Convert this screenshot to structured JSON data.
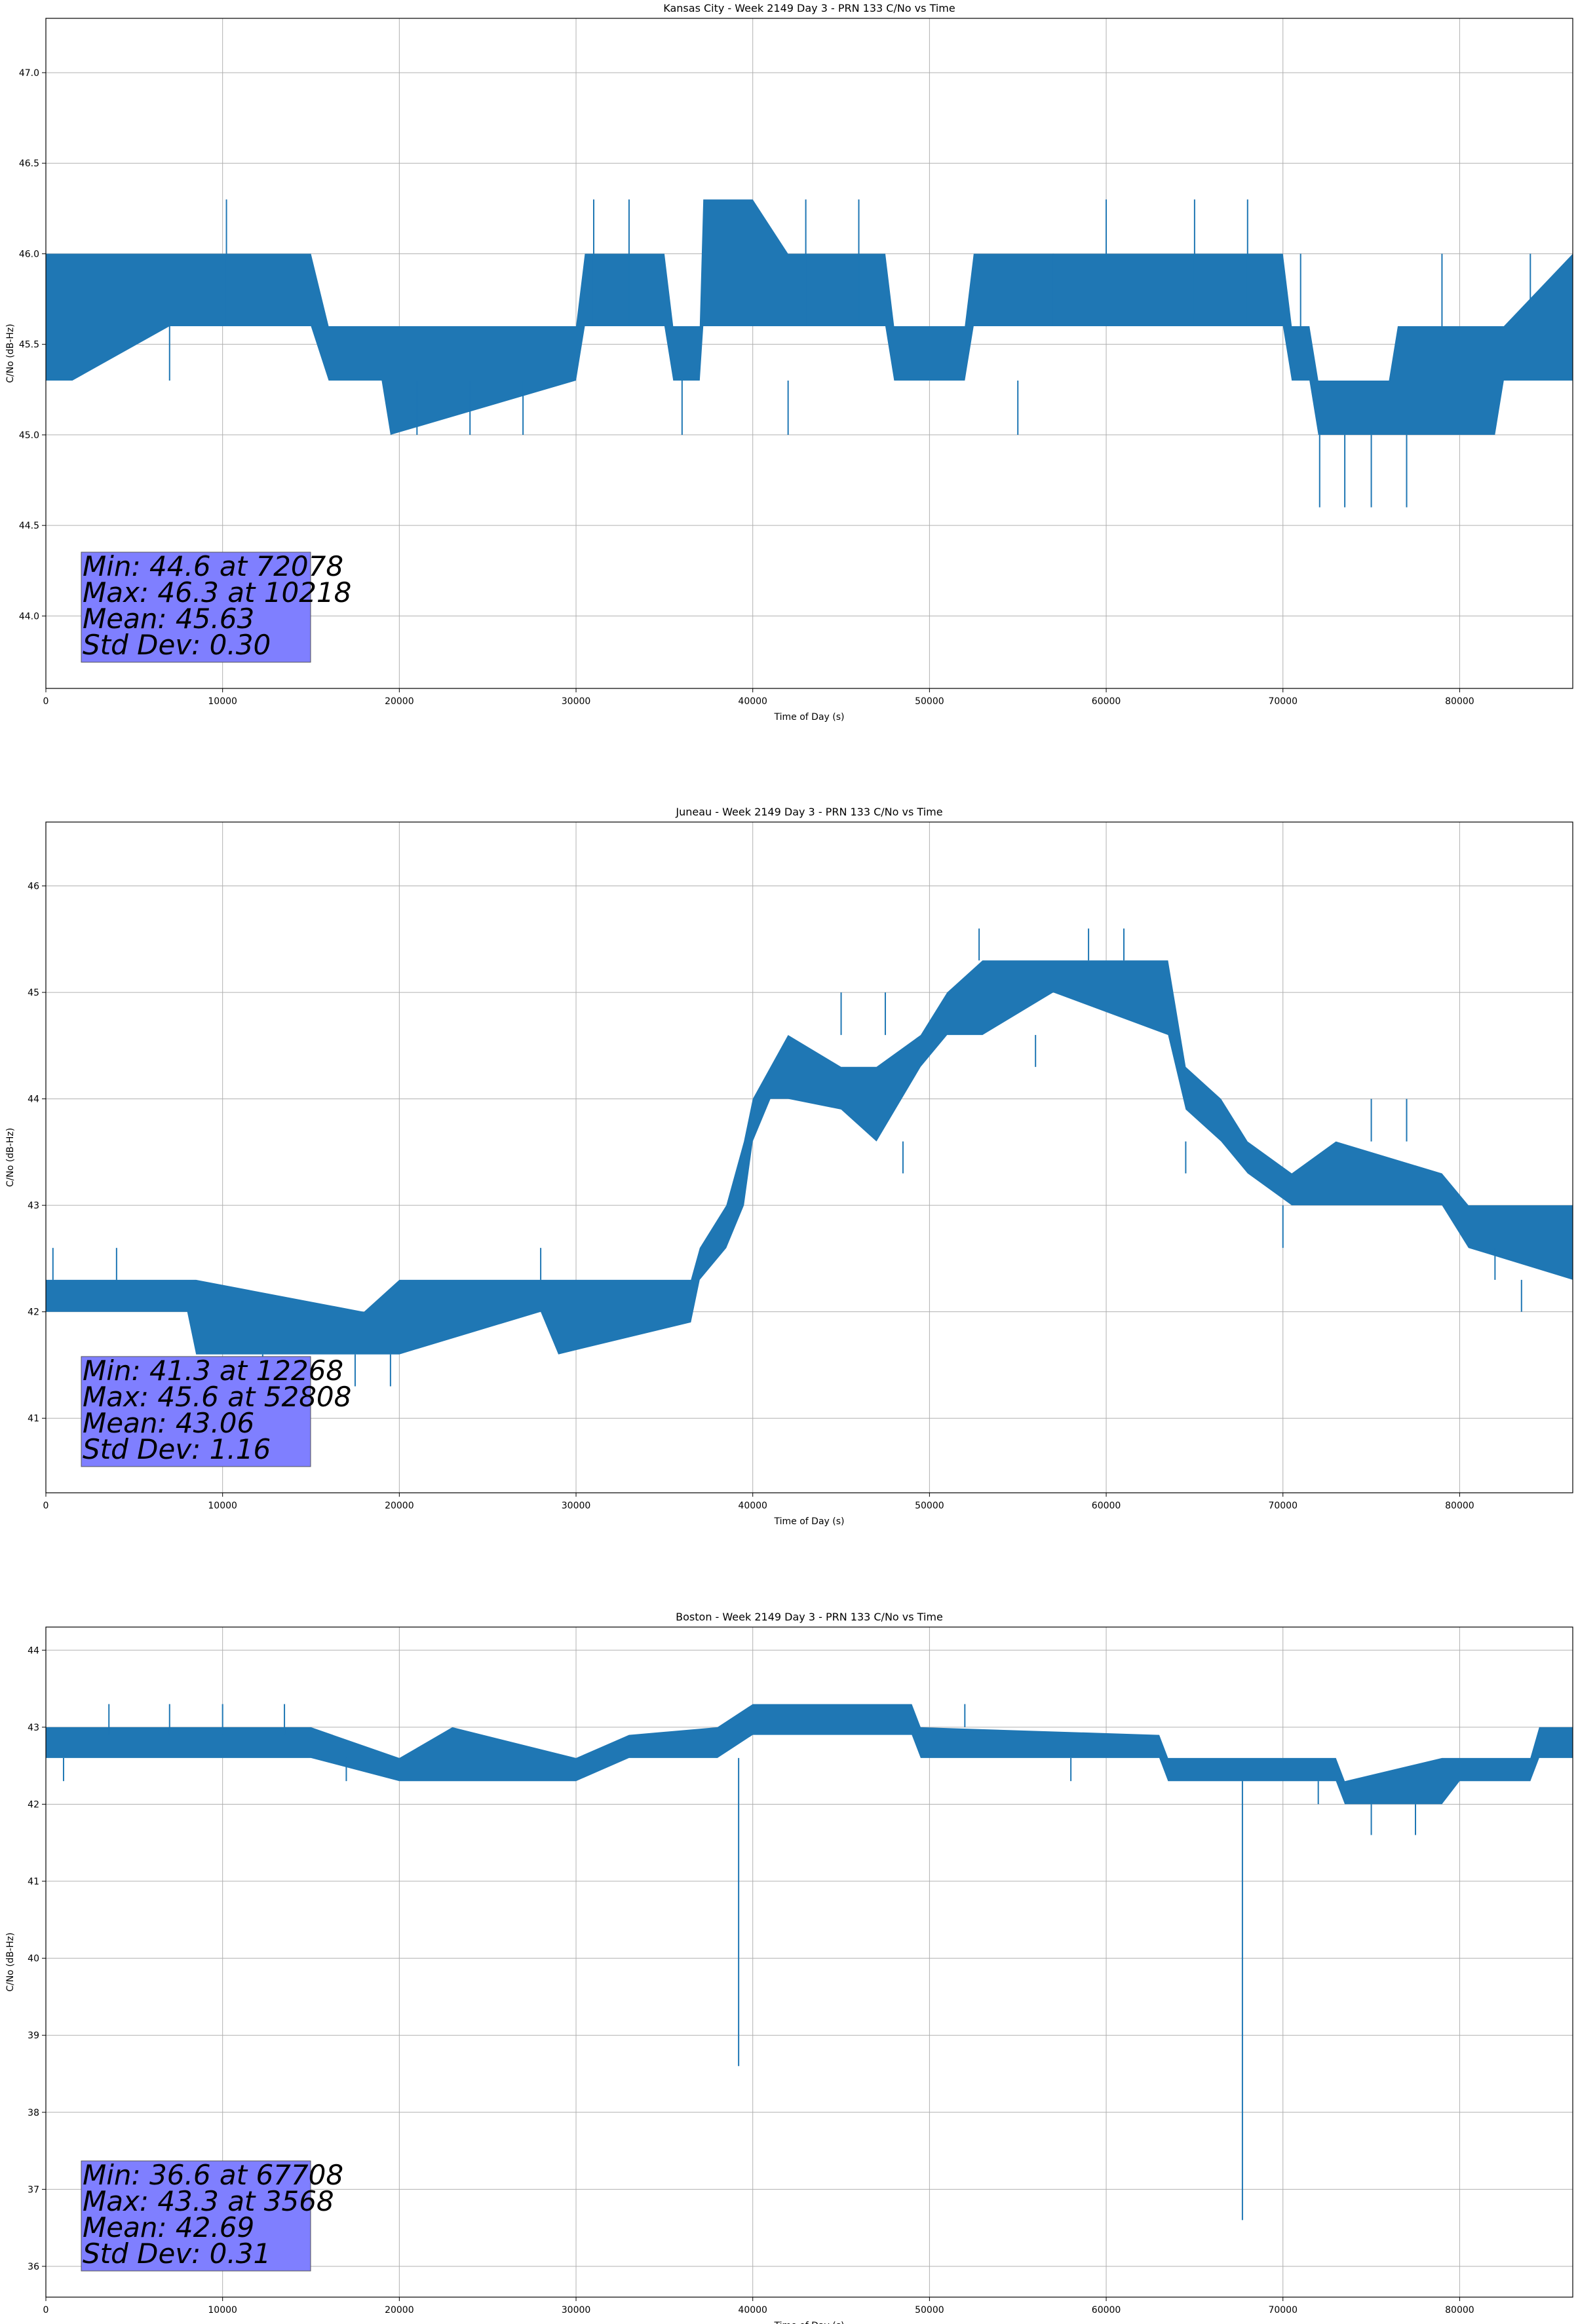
{
  "colors": {
    "series": "#1f77b4",
    "stat_box": "#7f7fff",
    "grid": "#b0b0b0"
  },
  "chart_data": [
    {
      "type": "line",
      "title": "Kansas City - Week 2149 Day 3 - PRN 133 C/No vs Time",
      "xlabel": "Time of Day (s)",
      "ylabel": "C/No (dB-Hz)",
      "xlim": [
        0,
        86400
      ],
      "ylim": [
        43.6,
        47.3
      ],
      "xticks": [
        0,
        10000,
        20000,
        30000,
        40000,
        50000,
        60000,
        70000,
        80000
      ],
      "yticks": [
        44.0,
        44.5,
        45.0,
        45.5,
        46.0,
        46.5,
        47.0
      ],
      "ytick_labels": [
        "44.0",
        "44.5",
        "45.0",
        "45.5",
        "46.0",
        "46.5",
        "47.0"
      ],
      "grid": true,
      "envelope": [
        [
          0,
          45.3,
          46.0
        ],
        [
          1500,
          45.3,
          46.0
        ],
        [
          7000,
          45.6,
          46.0
        ],
        [
          15000,
          45.6,
          46.0
        ],
        [
          16000,
          45.3,
          45.6
        ],
        [
          19000,
          45.3,
          45.6
        ],
        [
          19500,
          45.0,
          45.6
        ],
        [
          30000,
          45.3,
          45.6
        ],
        [
          30500,
          45.6,
          46.0
        ],
        [
          35000,
          45.6,
          46.0
        ],
        [
          35500,
          45.3,
          45.6
        ],
        [
          37000,
          45.3,
          45.6
        ],
        [
          37200,
          45.6,
          46.3
        ],
        [
          40000,
          45.6,
          46.3
        ],
        [
          42000,
          45.6,
          46.0
        ],
        [
          47500,
          45.6,
          46.0
        ],
        [
          48000,
          45.3,
          45.6
        ],
        [
          52000,
          45.3,
          45.6
        ],
        [
          52500,
          45.6,
          46.0
        ],
        [
          70000,
          45.6,
          46.0
        ],
        [
          70500,
          45.3,
          45.6
        ],
        [
          71500,
          45.3,
          45.6
        ],
        [
          72000,
          45.0,
          45.3
        ],
        [
          76000,
          45.0,
          45.3
        ],
        [
          76500,
          45.0,
          45.6
        ],
        [
          82000,
          45.0,
          45.6
        ],
        [
          82500,
          45.3,
          45.6
        ],
        [
          86400,
          45.3,
          46.0
        ]
      ],
      "spikes": [
        [
          10218,
          45.6,
          46.3
        ],
        [
          7000,
          45.3,
          45.6
        ],
        [
          36000,
          45.0,
          45.3
        ],
        [
          42000,
          45.0,
          45.3
        ],
        [
          60000,
          45.6,
          46.3
        ],
        [
          65000,
          45.6,
          46.3
        ],
        [
          68000,
          45.6,
          46.3
        ],
        [
          72078,
          44.6,
          45.0
        ],
        [
          73500,
          44.6,
          45.0
        ],
        [
          75000,
          44.6,
          45.0
        ],
        [
          77000,
          44.6,
          45.0
        ],
        [
          21000,
          45.0,
          45.3
        ],
        [
          24000,
          45.0,
          45.3
        ],
        [
          27000,
          45.0,
          45.3
        ],
        [
          31000,
          45.6,
          46.3
        ],
        [
          33000,
          45.6,
          46.3
        ],
        [
          43000,
          45.6,
          46.3
        ],
        [
          46000,
          45.6,
          46.3
        ],
        [
          55000,
          45.0,
          45.3
        ],
        [
          57000,
          45.6,
          46.0
        ],
        [
          79000,
          45.6,
          46.0
        ],
        [
          84000,
          45.6,
          46.0
        ],
        [
          71000,
          45.6,
          46.0
        ]
      ],
      "stats": [
        "Min: 44.6 at 72078",
        "Max: 46.3 at 10218",
        "Mean: 45.63",
        "Std Dev: 0.30"
      ]
    },
    {
      "type": "line",
      "title": "Juneau - Week 2149 Day 3 - PRN 133 C/No vs Time",
      "xlabel": "Time of Day (s)",
      "ylabel": "C/No (dB-Hz)",
      "xlim": [
        0,
        86400
      ],
      "ylim": [
        40.3,
        46.6
      ],
      "xticks": [
        0,
        10000,
        20000,
        30000,
        40000,
        50000,
        60000,
        70000,
        80000
      ],
      "yticks": [
        41,
        42,
        43,
        44,
        45,
        46
      ],
      "ytick_labels": [
        "41",
        "42",
        "43",
        "44",
        "45",
        "46"
      ],
      "grid": true,
      "envelope": [
        [
          0,
          42.0,
          42.3
        ],
        [
          8000,
          42.0,
          42.3
        ],
        [
          8500,
          41.6,
          42.3
        ],
        [
          18000,
          41.6,
          42.0
        ],
        [
          20000,
          41.6,
          42.3
        ],
        [
          28000,
          42.0,
          42.3
        ],
        [
          29000,
          41.6,
          42.3
        ],
        [
          36500,
          41.9,
          42.3
        ],
        [
          37000,
          42.3,
          42.6
        ],
        [
          38500,
          42.6,
          43.0
        ],
        [
          39500,
          43.0,
          43.6
        ],
        [
          40000,
          43.6,
          44.0
        ],
        [
          41000,
          44.0,
          44.3
        ],
        [
          42000,
          44.0,
          44.6
        ],
        [
          45000,
          43.9,
          44.3
        ],
        [
          47000,
          43.6,
          44.3
        ],
        [
          49500,
          44.3,
          44.6
        ],
        [
          51000,
          44.6,
          45.0
        ],
        [
          53000,
          44.6,
          45.3
        ],
        [
          57000,
          45.0,
          45.3
        ],
        [
          63500,
          44.6,
          45.3
        ],
        [
          64500,
          43.9,
          44.3
        ],
        [
          66500,
          43.6,
          44.0
        ],
        [
          68000,
          43.3,
          43.6
        ],
        [
          70500,
          43.0,
          43.3
        ],
        [
          73000,
          43.0,
          43.6
        ],
        [
          79000,
          43.0,
          43.3
        ],
        [
          80500,
          42.6,
          43.0
        ],
        [
          86400,
          42.3,
          43.0
        ]
      ],
      "spikes": [
        [
          12268,
          41.3,
          41.6
        ],
        [
          17500,
          41.3,
          41.6
        ],
        [
          19500,
          41.3,
          41.6
        ],
        [
          400,
          42.3,
          42.6
        ],
        [
          4000,
          42.3,
          42.6
        ],
        [
          28000,
          42.3,
          42.6
        ],
        [
          45000,
          44.6,
          45.0
        ],
        [
          47500,
          44.6,
          45.0
        ],
        [
          52808,
          45.3,
          45.6
        ],
        [
          59000,
          45.3,
          45.6
        ],
        [
          61000,
          45.3,
          45.6
        ],
        [
          48500,
          43.3,
          43.6
        ],
        [
          64500,
          43.3,
          43.6
        ],
        [
          70000,
          42.6,
          43.0
        ],
        [
          75000,
          43.6,
          44.0
        ],
        [
          77000,
          43.6,
          44.0
        ],
        [
          82000,
          42.3,
          42.6
        ],
        [
          83500,
          42.0,
          42.3
        ],
        [
          56000,
          44.3,
          44.6
        ]
      ],
      "stats": [
        "Min: 41.3 at 12268",
        "Max: 45.6 at 52808",
        "Mean: 43.06",
        "Std Dev: 1.16"
      ]
    },
    {
      "type": "line",
      "title": "Boston - Week 2149 Day 3 - PRN 133 C/No vs Time",
      "xlabel": "Time of Day (s)",
      "ylabel": "C/No (dB-Hz)",
      "xlim": [
        0,
        86400
      ],
      "ylim": [
        35.6,
        44.3
      ],
      "xticks": [
        0,
        10000,
        20000,
        30000,
        40000,
        50000,
        60000,
        70000,
        80000
      ],
      "yticks": [
        36,
        37,
        38,
        39,
        40,
        41,
        42,
        43,
        44
      ],
      "ytick_labels": [
        "36",
        "37",
        "38",
        "39",
        "40",
        "41",
        "42",
        "43",
        "44"
      ],
      "grid": true,
      "envelope": [
        [
          0,
          42.6,
          43.0
        ],
        [
          3000,
          42.6,
          43.0
        ],
        [
          15000,
          42.6,
          43.0
        ],
        [
          20000,
          42.3,
          42.6
        ],
        [
          23000,
          42.3,
          43.0
        ],
        [
          30000,
          42.3,
          42.6
        ],
        [
          33000,
          42.6,
          42.9
        ],
        [
          38000,
          42.6,
          43.0
        ],
        [
          40000,
          42.9,
          43.3
        ],
        [
          49000,
          42.9,
          43.3
        ],
        [
          49500,
          42.6,
          43.0
        ],
        [
          63000,
          42.6,
          42.9
        ],
        [
          63500,
          42.3,
          42.6
        ],
        [
          73000,
          42.3,
          42.6
        ],
        [
          73500,
          42.0,
          42.3
        ],
        [
          79000,
          42.0,
          42.6
        ],
        [
          80000,
          42.3,
          42.6
        ],
        [
          84000,
          42.3,
          42.6
        ],
        [
          84500,
          42.6,
          43.0
        ],
        [
          86400,
          42.6,
          43.0
        ]
      ],
      "spikes": [
        [
          39200,
          38.6,
          42.6
        ],
        [
          67708,
          36.6,
          42.3
        ],
        [
          3568,
          42.9,
          43.3
        ],
        [
          7000,
          42.9,
          43.3
        ],
        [
          10000,
          42.9,
          43.3
        ],
        [
          13500,
          42.9,
          43.3
        ],
        [
          1000,
          42.3,
          42.6
        ],
        [
          17000,
          42.3,
          42.6
        ],
        [
          58000,
          42.3,
          42.6
        ],
        [
          72000,
          42.0,
          42.3
        ],
        [
          75000,
          41.6,
          42.0
        ],
        [
          77500,
          41.6,
          42.0
        ],
        [
          52000,
          43.0,
          43.3
        ]
      ],
      "stats": [
        "Min: 36.6 at 67708",
        "Max: 43.3 at 3568",
        "Mean: 42.69",
        "Std Dev: 0.31"
      ]
    }
  ]
}
